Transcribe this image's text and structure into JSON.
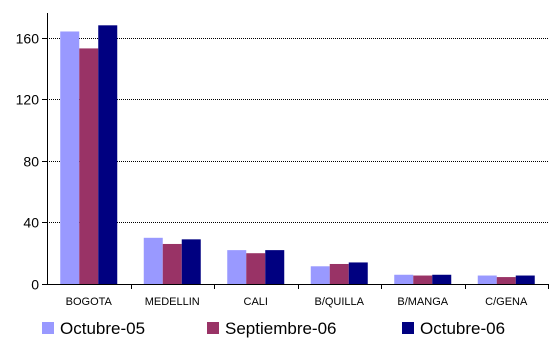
{
  "chart_data": {
    "type": "bar",
    "categories": [
      "BOGOTA",
      "MEDELLIN",
      "CALI",
      "B/QUILLA",
      "B/MANGA",
      "C/GENA"
    ],
    "series": [
      {
        "name": "Octubre-05",
        "color": "#9999ff",
        "values": [
          164,
          30,
          22,
          11.5,
          6,
          5.5
        ]
      },
      {
        "name": "Septiembre-06",
        "color": "#993366",
        "values": [
          153,
          26,
          20,
          13,
          5.5,
          4.5
        ]
      },
      {
        "name": "Octubre-06",
        "color": "#000080",
        "values": [
          168,
          29,
          22,
          14,
          6,
          5.5
        ]
      }
    ],
    "yticks": [
      0,
      40,
      80,
      120,
      160
    ],
    "ylim": [
      0,
      176
    ],
    "grid": true,
    "legend_position": "bottom",
    "title": "",
    "xlabel": "",
    "ylabel": ""
  }
}
